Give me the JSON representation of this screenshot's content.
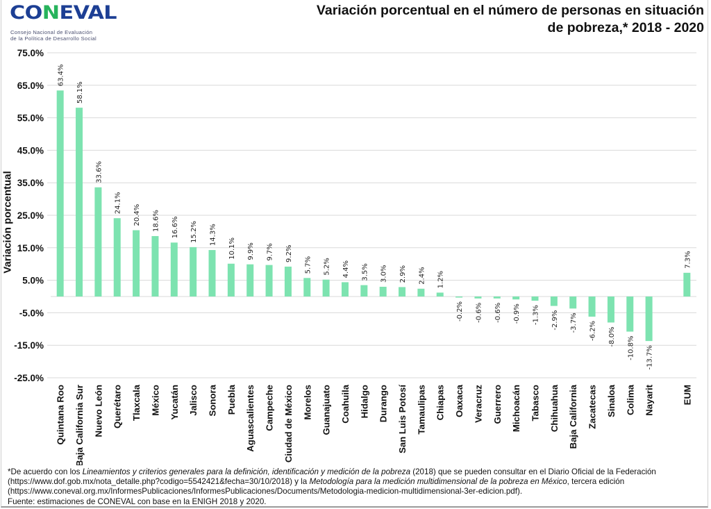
{
  "logo": {
    "wordmark_left": "CO",
    "wordmark_n": "N",
    "wordmark_right": "EVAL",
    "subtitle_line1": "Consejo Nacional de Evaluación",
    "subtitle_line2": "de la Política de Desarrollo Social",
    "colors": {
      "primary": "#1d3f94",
      "accent": "#27b35c"
    }
  },
  "header": {
    "title_line1": "Variación porcentual en el número de personas en situación",
    "title_line2": "de pobreza,* 2018 - 2020"
  },
  "chart_data": {
    "type": "bar",
    "title": "Variación porcentual en el número de personas en situación de pobreza,* 2018 - 2020",
    "xlabel": "",
    "ylabel": "Variación porcentual",
    "ylim": [
      -25,
      75
    ],
    "yticks": [
      75,
      65,
      55,
      45,
      35,
      25,
      15,
      5,
      -5,
      -15,
      -25
    ],
    "ytick_labels": [
      "75.0%",
      "65.0%",
      "55.0%",
      "45.0%",
      "35.0%",
      "25.0%",
      "15.0%",
      "5.0%",
      "-5.0%",
      "-15.0%",
      "-25.0%"
    ],
    "grid": true,
    "bar_color": "#7de3b0",
    "categories": [
      "Quintana Roo",
      "Baja California Sur",
      "Nuevo León",
      "Querétaro",
      "Tlaxcala",
      "México",
      "Yucatán",
      "Jalisco",
      "Sonora",
      "Puebla",
      "Aguascalientes",
      "Campeche",
      "Ciudad de México",
      "Morelos",
      "Guanajuato",
      "Coahuila",
      "Hidalgo",
      "Durango",
      "San Luis Potosí",
      "Tamaulipas",
      "Chiapas",
      "Oaxaca",
      "Veracruz",
      "Guerrero",
      "Michoacán",
      "Tabasco",
      "Chihuahua",
      "Baja California",
      "Zacatecas",
      "Sinaloa",
      "Colima",
      "Nayarit",
      "",
      "EUM"
    ],
    "values": [
      63.4,
      58.1,
      33.6,
      24.1,
      20.4,
      18.6,
      16.6,
      15.2,
      14.3,
      10.1,
      9.9,
      9.7,
      9.2,
      5.7,
      5.2,
      4.4,
      3.5,
      3.0,
      2.9,
      2.4,
      1.2,
      -0.2,
      -0.6,
      -0.6,
      -0.9,
      -1.3,
      -2.9,
      -3.7,
      -6.2,
      -8.0,
      -10.8,
      -13.7,
      null,
      7.3
    ],
    "data_labels": [
      "63.4%",
      "58.1%",
      "33.6%",
      "24.1%",
      "20.4%",
      "18.6%",
      "16.6%",
      "15.2%",
      "14.3%",
      "10.1%",
      "9.9%",
      "9.7%",
      "9.2%",
      "5.7%",
      "5.2%",
      "4.4%",
      "3.5%",
      "3.0%",
      "2.9%",
      "2.4%",
      "1.2%",
      "-0.2%",
      "-0.6%",
      "-0.6%",
      "-0.9%",
      "-1.3%",
      "-2.9%",
      "-3.7%",
      "-6.2%",
      "-8.0%",
      "-10.8%",
      "-13.7%",
      "",
      "7.3%"
    ],
    "legend": "none"
  },
  "footer": {
    "note_part1": "*De acuerdo con los ",
    "note_italic1": "Lineamientos y criterios generales para la definición, identificación y medición de la pobreza",
    "note_part2": " (2018) que se pueden consultar en el Diario Oficial de la Federación",
    "note_line2_part1": "(https://www.dof.gob.mx/nota_detalle.php?codigo=5542421&fecha=30/10/2018) y la ",
    "note_italic2": "Metodología para la medición multidimensional de la pobreza en México",
    "note_line2_part2": ", tercera edición",
    "note_line3": "(https://www.coneval.org.mx/InformesPublicaciones/InformesPublicaciones/Documents/Metodologia-medicion-multidimensional-3er-edicion.pdf).",
    "source": "Fuente: estimaciones de CONEVAL con base en la ENIGH 2018 y 2020."
  }
}
